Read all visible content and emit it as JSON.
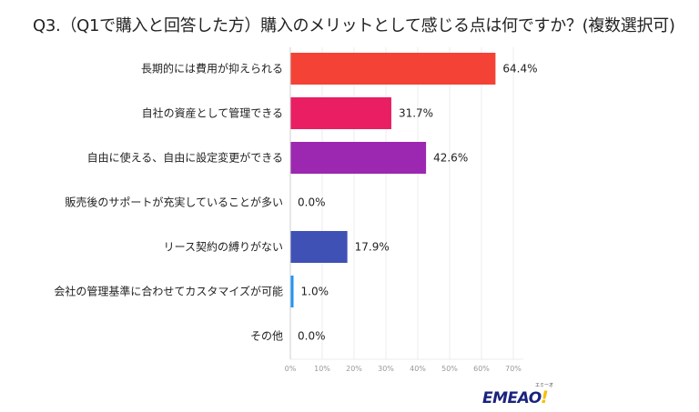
{
  "title": "Q3.（Q1で購入と回答した方）購入のメリットとして感じる点は何ですか？(複数選択可)",
  "logo": {
    "text": "EMEAO!",
    "ruby": "エミーオ"
  },
  "chart_data": {
    "type": "bar",
    "orientation": "horizontal",
    "title": "Q3.（Q1で購入と回答した方）購入のメリットとして感じる点は何ですか？(複数選択可)",
    "categories": [
      "長期的には費用が抑えられる",
      "自社の資産として管理できる",
      "自由に使える、自由に設定変更ができる",
      "販売後のサポートが充実していることが多い",
      "リース契約の縛りがない",
      "会社の管理基準に合わせてカスタマイズが可能",
      "その他"
    ],
    "values": [
      64.4,
      31.7,
      42.6,
      0.0,
      17.9,
      1.0,
      0.0
    ],
    "value_labels": [
      "64.4%",
      "31.7%",
      "42.6%",
      "0.0%",
      "17.9%",
      "1.0%",
      "0.0%"
    ],
    "colors": [
      "#f44336",
      "#e91e63",
      "#9c27b0",
      "#673ab7",
      "#3f51b5",
      "#2196f3",
      "#03a9f4"
    ],
    "xlim": [
      0,
      70
    ],
    "xticks": [
      0,
      10,
      20,
      30,
      40,
      50,
      60,
      70
    ],
    "xtick_labels": [
      "0%",
      "10%",
      "20%",
      "30%",
      "40%",
      "50%",
      "60%",
      "70%"
    ],
    "xlabel": "",
    "ylabel": "",
    "grid": true,
    "legend": "none"
  }
}
